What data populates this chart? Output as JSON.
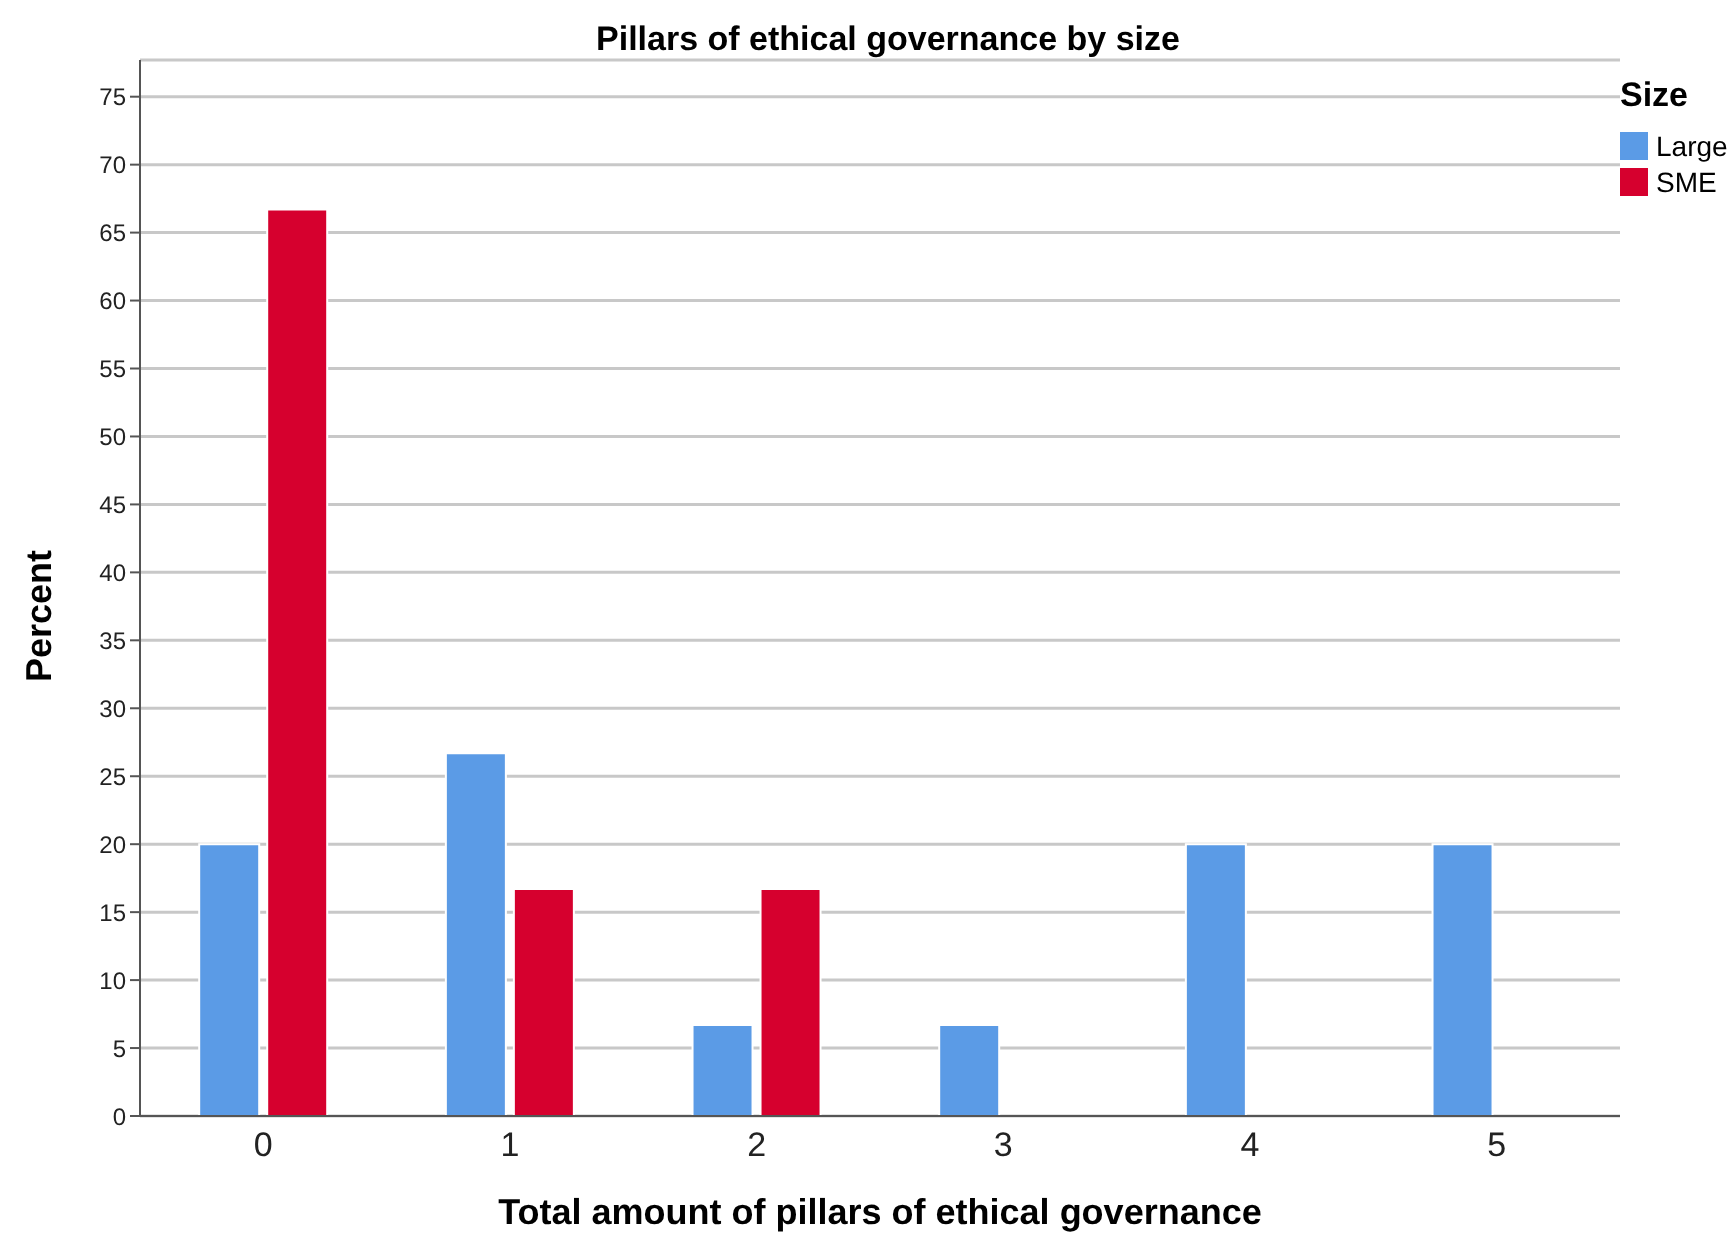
{
  "chart_data": {
    "type": "bar",
    "title": "Pillars of ethical governance by size",
    "xlabel": "Total amount of pillars of ethical governance",
    "ylabel": "Percent",
    "legend_title": "Size",
    "categories": [
      "0",
      "1",
      "2",
      "3",
      "4",
      "5"
    ],
    "series": [
      {
        "name": "Large",
        "color": "#5b9be6",
        "values": [
          20,
          26.7,
          6.7,
          6.7,
          20,
          20
        ]
      },
      {
        "name": "SME",
        "color": "#d6002e",
        "values": [
          66.7,
          16.7,
          16.7,
          null,
          null,
          null
        ]
      }
    ],
    "ylim": [
      0,
      77.7
    ],
    "yticks": [
      0,
      5,
      10,
      15,
      20,
      25,
      30,
      35,
      40,
      45,
      50,
      55,
      60,
      65,
      70,
      75
    ],
    "grid": "y",
    "legend": "top right"
  }
}
